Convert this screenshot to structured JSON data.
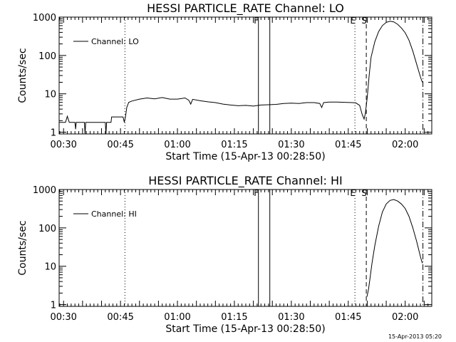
{
  "footer": {
    "timestamp": "15-Apr-2013 05:20"
  },
  "chart_data": [
    {
      "type": "line",
      "title": "HESSI PARTICLE_RATE Channel: LO",
      "xlabel": "Start Time (15-Apr-13 00:28:50)",
      "ylabel": "Counts/sec",
      "yscale": "log",
      "ylim": [
        0.9,
        1000
      ],
      "xlim": [
        "00:28:50",
        "02:07:00"
      ],
      "x_ticks": [
        "00:30",
        "00:45",
        "01:00",
        "01:15",
        "01:30",
        "01:45",
        "02:00"
      ],
      "y_ticks": [
        {
          "value": 1,
          "label": "1"
        },
        {
          "value": 10,
          "label": "10"
        },
        {
          "value": 100,
          "label": "100"
        },
        {
          "value": 1000,
          "label": "1000"
        }
      ],
      "legend": {
        "position": "top-left",
        "entries": [
          "Channel: LO"
        ]
      },
      "flag_lines": [
        {
          "time": "00:46:10",
          "style": "dotted",
          "label": ""
        },
        {
          "time": "01:21:20",
          "style": "solid",
          "label": "F"
        },
        {
          "time": "01:24:20",
          "style": "solid",
          "label": ""
        },
        {
          "time": "01:46:45",
          "style": "dotted",
          "label": "E"
        },
        {
          "time": "01:49:45",
          "style": "dashed",
          "label": "S"
        },
        {
          "time": "02:04:40",
          "style": "dashdot",
          "label": ""
        }
      ],
      "series": [
        {
          "name": "Channel: LO",
          "points": [
            [
              "00:28:50",
              1.8
            ],
            [
              "00:30:30",
              1.8
            ],
            [
              "00:31:00",
              2.6
            ],
            [
              "00:31:30",
              1.8
            ],
            [
              "00:33:00",
              1.8
            ],
            [
              "00:33:10",
              1.2
            ],
            [
              "00:33:20",
              1.8
            ],
            [
              "00:35:30",
              1.8
            ],
            [
              "00:35:40",
              0.9
            ],
            [
              "00:35:50",
              1.8
            ],
            [
              "00:41:00",
              1.8
            ],
            [
              "00:41:10",
              0.9
            ],
            [
              "00:41:20",
              1.8
            ],
            [
              "00:42:30",
              1.8
            ],
            [
              "00:42:40",
              2.5
            ],
            [
              "00:45:40",
              2.5
            ],
            [
              "00:46:00",
              1.8
            ],
            [
              "00:46:20",
              2.6
            ],
            [
              "00:46:40",
              4.5
            ],
            [
              "00:47:10",
              6.0
            ],
            [
              "00:48:00",
              6.5
            ],
            [
              "00:50:00",
              7.3
            ],
            [
              "00:52:00",
              7.8
            ],
            [
              "00:54:00",
              7.4
            ],
            [
              "00:56:00",
              8.0
            ],
            [
              "00:58:00",
              7.3
            ],
            [
              "01:00:00",
              7.3
            ],
            [
              "01:02:00",
              7.8
            ],
            [
              "01:03:00",
              6.8
            ],
            [
              "01:03:30",
              5.4
            ],
            [
              "01:04:00",
              7.2
            ],
            [
              "01:06:00",
              6.6
            ],
            [
              "01:08:00",
              6.2
            ],
            [
              "01:10:00",
              5.9
            ],
            [
              "01:12:00",
              5.4
            ],
            [
              "01:14:00",
              5.1
            ],
            [
              "01:16:00",
              4.9
            ],
            [
              "01:18:00",
              5.0
            ],
            [
              "01:20:00",
              4.8
            ],
            [
              "01:22:00",
              5.1
            ],
            [
              "01:24:00",
              5.2
            ],
            [
              "01:26:00",
              5.3
            ],
            [
              "01:28:00",
              5.6
            ],
            [
              "01:30:00",
              5.7
            ],
            [
              "01:32:00",
              5.6
            ],
            [
              "01:34:00",
              5.9
            ],
            [
              "01:36:00",
              5.9
            ],
            [
              "01:37:30",
              5.6
            ],
            [
              "01:38:00",
              4.4
            ],
            [
              "01:38:30",
              5.9
            ],
            [
              "01:40:00",
              6.1
            ],
            [
              "01:42:00",
              6.1
            ],
            [
              "01:44:00",
              6.0
            ],
            [
              "01:46:00",
              5.9
            ],
            [
              "01:47:00",
              5.8
            ],
            [
              "01:48:00",
              5.0
            ],
            [
              "01:48:40",
              2.9
            ],
            [
              "01:49:10",
              2.2
            ],
            [
              "01:49:30",
              3.1
            ],
            [
              "01:50:00",
              8.0
            ],
            [
              "01:50:30",
              30
            ],
            [
              "01:51:00",
              90
            ],
            [
              "01:52:00",
              230
            ],
            [
              "01:53:00",
              420
            ],
            [
              "01:54:00",
              600
            ],
            [
              "01:55:00",
              730
            ],
            [
              "01:56:00",
              780
            ],
            [
              "01:57:00",
              750
            ],
            [
              "01:58:00",
              650
            ],
            [
              "01:59:00",
              520
            ],
            [
              "02:00:00",
              390
            ],
            [
              "02:01:00",
              250
            ],
            [
              "02:02:00",
              130
            ],
            [
              "02:03:00",
              60
            ],
            [
              "02:04:00",
              28
            ],
            [
              "02:04:30",
              20
            ]
          ]
        }
      ]
    },
    {
      "type": "line",
      "title": "HESSI PARTICLE_RATE Channel: HI",
      "xlabel": "Start Time (15-Apr-13 00:28:50)",
      "ylabel": "Counts/sec",
      "yscale": "log",
      "ylim": [
        0.9,
        1000
      ],
      "xlim": [
        "00:28:50",
        "02:07:00"
      ],
      "x_ticks": [
        "00:30",
        "00:45",
        "01:00",
        "01:15",
        "01:30",
        "01:45",
        "02:00"
      ],
      "y_ticks": [
        {
          "value": 1,
          "label": "1"
        },
        {
          "value": 10,
          "label": "10"
        },
        {
          "value": 100,
          "label": "100"
        },
        {
          "value": 1000,
          "label": "1000"
        }
      ],
      "legend": {
        "position": "top-left",
        "entries": [
          "Channel: HI"
        ]
      },
      "flag_lines": [
        {
          "time": "00:46:10",
          "style": "dotted",
          "label": ""
        },
        {
          "time": "01:21:20",
          "style": "solid",
          "label": "F"
        },
        {
          "time": "01:24:20",
          "style": "solid",
          "label": ""
        },
        {
          "time": "01:46:45",
          "style": "dotted",
          "label": "E"
        },
        {
          "time": "01:49:45",
          "style": "dashed",
          "label": "S"
        },
        {
          "time": "02:04:40",
          "style": "dashdot",
          "label": ""
        }
      ],
      "series": [
        {
          "name": "Channel: HI",
          "points": [
            [
              "01:49:55",
              1.6
            ],
            [
              "01:50:20",
              2.5
            ],
            [
              "01:50:45",
              5
            ],
            [
              "01:51:15",
              12
            ],
            [
              "01:52:00",
              35
            ],
            [
              "01:53:00",
              110
            ],
            [
              "01:54:00",
              260
            ],
            [
              "01:55:00",
              420
            ],
            [
              "01:56:00",
              520
            ],
            [
              "01:57:00",
              550
            ],
            [
              "01:58:00",
              500
            ],
            [
              "01:59:00",
              420
            ],
            [
              "02:00:00",
              320
            ],
            [
              "02:01:00",
              200
            ],
            [
              "02:02:00",
              100
            ],
            [
              "02:03:00",
              45
            ],
            [
              "02:04:00",
              18
            ],
            [
              "02:04:30",
              12
            ]
          ]
        }
      ]
    }
  ]
}
